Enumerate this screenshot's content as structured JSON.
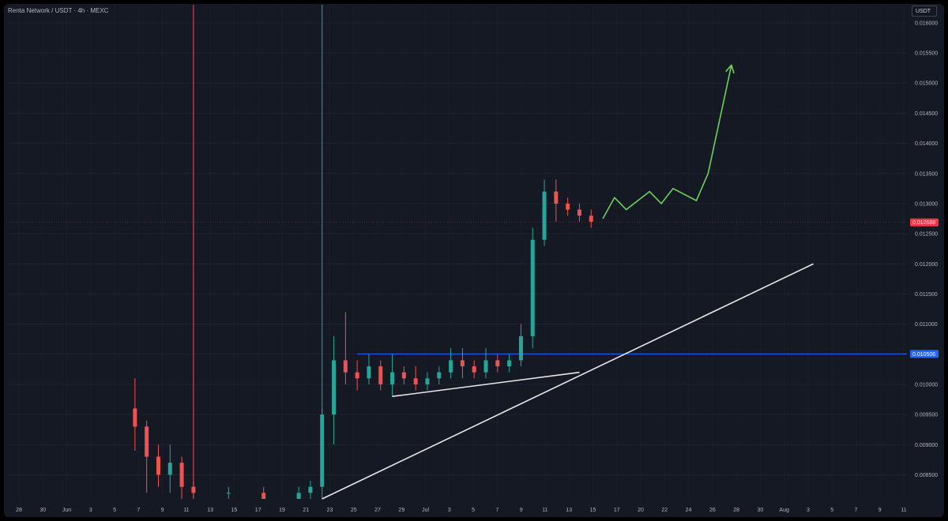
{
  "header": {
    "symbol_title": "Renta Network / USDT · 4h · MEXC",
    "currency_button": "USDT"
  },
  "colors": {
    "background": "#151924",
    "frame": "#000000",
    "candle_up": "#26a69a",
    "candle_down": "#ef5350",
    "arrow_projection": "#6cd05a",
    "trendline": "#e8e8e8",
    "level_line": "#2962ff",
    "current_price_badge": "#f23645",
    "level_badge": "#2962ff",
    "text": "#b2b5be"
  },
  "chart_data": {
    "type": "candlestick",
    "title": "Renta Network / USDT · 4h · MEXC",
    "y_axis": {
      "position": "right",
      "ticks": [
        "0.016000",
        "0.015500",
        "0.015000",
        "0.014500",
        "0.014000",
        "0.013500",
        "0.013000",
        "0.012500",
        "0.012000",
        "0.011500",
        "0.011000",
        "0.010500",
        "0.010000",
        "0.009500",
        "0.009000",
        "0.008500"
      ],
      "ylim": [
        0.0081,
        0.0163
      ]
    },
    "x_axis": {
      "ticks": [
        "28",
        "30",
        "Jun",
        "3",
        "5",
        "7",
        "9",
        "11",
        "13",
        "15",
        "17",
        "19",
        "21",
        "23",
        "25",
        "27",
        "29",
        "Jul",
        "3",
        "5",
        "7",
        "9",
        "11",
        "13",
        "15",
        "17",
        "20",
        "22",
        "24",
        "26",
        "28",
        "30",
        "Aug",
        "3",
        "5",
        "7",
        "9",
        "11"
      ],
      "range": [
        "2024-05-27",
        "2024-08-12"
      ]
    },
    "current_price": {
      "label": "0.012688",
      "value": 0.012688
    },
    "horizontal_level": {
      "label": "0.010506",
      "value": 0.010506,
      "x_start": "2024-06-26"
    },
    "vertical_markers": [
      {
        "x": "2024-06-12",
        "color": "#ef5350"
      },
      {
        "x": "2024-06-23",
        "color": "#26a69a"
      }
    ],
    "series": [
      {
        "name": "",
        "ohlc": [
          [
            "2024-06-07",
            0.0096,
            0.0101,
            0.0089,
            0.0093
          ],
          [
            "2024-06-08",
            0.0093,
            0.0094,
            0.0082,
            0.0088
          ],
          [
            "2024-06-09",
            0.0088,
            0.009,
            0.0083,
            0.0085
          ],
          [
            "2024-06-10",
            0.0085,
            0.009,
            0.0082,
            0.0087
          ],
          [
            "2024-06-11",
            0.0087,
            0.0088,
            0.0081,
            0.0083
          ],
          [
            "2024-06-12",
            0.0083,
            0.0084,
            0.0081,
            0.0082
          ],
          [
            "2024-06-15",
            0.0082,
            0.0083,
            0.0081,
            0.0082
          ],
          [
            "2024-06-18",
            0.0082,
            0.0083,
            0.0081,
            0.0081
          ],
          [
            "2024-06-21",
            0.0081,
            0.0083,
            0.0081,
            0.0082
          ],
          [
            "2024-06-22",
            0.0082,
            0.0084,
            0.0081,
            0.0083
          ],
          [
            "2024-06-23",
            0.0083,
            0.0096,
            0.0083,
            0.0095
          ],
          [
            "2024-06-24",
            0.0095,
            0.0108,
            0.009,
            0.0104
          ],
          [
            "2024-06-25",
            0.0104,
            0.0112,
            0.01,
            0.0102
          ],
          [
            "2024-06-26",
            0.0102,
            0.0104,
            0.0099,
            0.0101
          ],
          [
            "2024-06-27",
            0.0101,
            0.0105,
            0.01,
            0.0103
          ],
          [
            "2024-06-28",
            0.0103,
            0.0104,
            0.0099,
            0.01
          ],
          [
            "2024-06-29",
            0.01,
            0.0105,
            0.0098,
            0.0102
          ],
          [
            "2024-06-30",
            0.0102,
            0.0103,
            0.01,
            0.0101
          ],
          [
            "2024-07-01",
            0.0101,
            0.0103,
            0.0099,
            0.01
          ],
          [
            "2024-07-02",
            0.01,
            0.0102,
            0.0099,
            0.0101
          ],
          [
            "2024-07-03",
            0.0101,
            0.0103,
            0.01,
            0.0102
          ],
          [
            "2024-07-04",
            0.0102,
            0.0106,
            0.0101,
            0.0104
          ],
          [
            "2024-07-05",
            0.0104,
            0.0106,
            0.0101,
            0.0103
          ],
          [
            "2024-07-06",
            0.0103,
            0.0104,
            0.0101,
            0.0102
          ],
          [
            "2024-07-07",
            0.0102,
            0.0106,
            0.0101,
            0.0104
          ],
          [
            "2024-07-08",
            0.0104,
            0.0105,
            0.0102,
            0.0103
          ],
          [
            "2024-07-09",
            0.0103,
            0.0105,
            0.0102,
            0.0104
          ],
          [
            "2024-07-10",
            0.0104,
            0.011,
            0.0103,
            0.0108
          ],
          [
            "2024-07-11",
            0.0108,
            0.0126,
            0.0106,
            0.0124
          ],
          [
            "2024-07-12",
            0.0124,
            0.0134,
            0.0123,
            0.0132
          ],
          [
            "2024-07-13",
            0.0132,
            0.0134,
            0.0127,
            0.013
          ],
          [
            "2024-07-14",
            0.013,
            0.0131,
            0.0128,
            0.0129
          ],
          [
            "2024-07-15",
            0.0129,
            0.013,
            0.0127,
            0.0128
          ],
          [
            "2024-07-16",
            0.0128,
            0.0129,
            0.0126,
            0.0127
          ]
        ]
      }
    ],
    "drawings": [
      {
        "type": "trendline",
        "from": [
          "2024-06-23",
          0.0081
        ],
        "to": [
          "2024-08-04",
          0.012
        ]
      },
      {
        "type": "trendline",
        "from": [
          "2024-06-29",
          0.0098
        ],
        "to": [
          "2024-07-15",
          0.0102
        ]
      },
      {
        "type": "projection_arrow",
        "points": [
          [
            "2024-07-17",
            0.01275
          ],
          [
            "2024-07-18",
            0.0131
          ],
          [
            "2024-07-19",
            0.0129
          ],
          [
            "2024-07-21",
            0.0132
          ],
          [
            "2024-07-22",
            0.013
          ],
          [
            "2024-07-23",
            0.01325
          ],
          [
            "2024-07-25",
            0.01305
          ],
          [
            "2024-07-26",
            0.0135
          ],
          [
            "2024-07-28",
            0.0153
          ]
        ]
      }
    ]
  }
}
